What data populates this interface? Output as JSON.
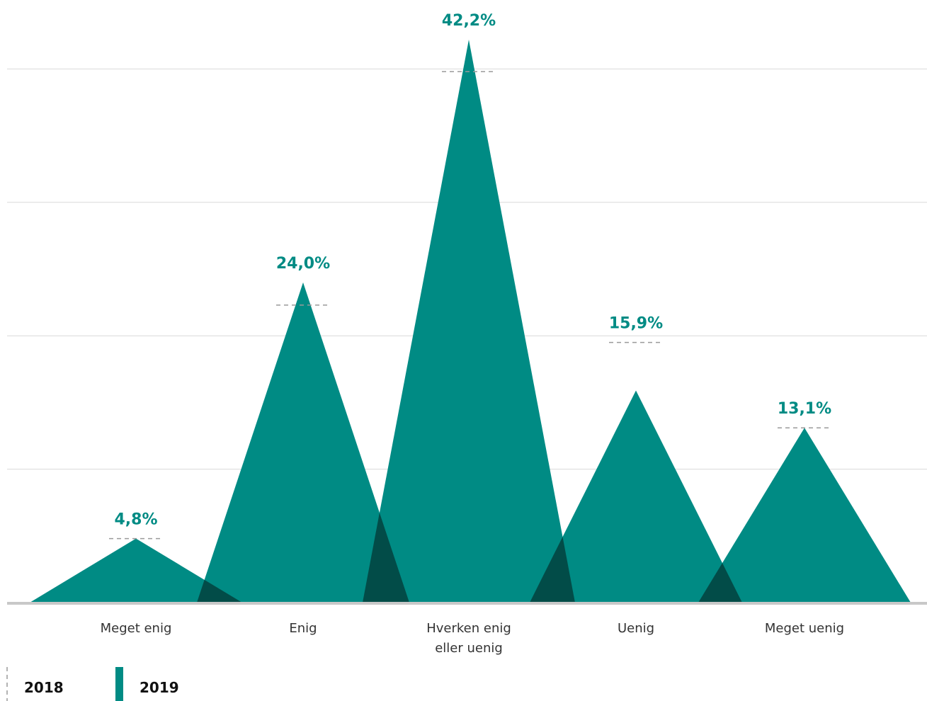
{
  "chart_data": {
    "type": "area",
    "categories": [
      "Meget enig",
      "Enig",
      "Hverken enig eller uenig",
      "Uenig",
      "Meget uenig"
    ],
    "category_lines": [
      [
        "Meget enig"
      ],
      [
        "Enig"
      ],
      [
        "Hverken enig",
        "eller uenig"
      ],
      [
        "Uenig"
      ],
      [
        "Meget uenig"
      ]
    ],
    "series": [
      {
        "name": "2018",
        "values": [
          4.8,
          22.3,
          39.8,
          19.5,
          13.1
        ]
      },
      {
        "name": "2019",
        "values": [
          4.8,
          24.0,
          42.2,
          15.9,
          13.1
        ]
      }
    ],
    "value_labels": [
      "4,8%",
      "24,0%",
      "42,2%",
      "15,9%",
      "13,1%"
    ],
    "ylim": [
      0,
      44.5
    ],
    "gridlines": [
      10,
      20,
      30,
      40
    ],
    "grid": true,
    "legend_position": "bottom-left"
  },
  "legend": [
    {
      "label": "2018",
      "style": "dashed"
    },
    {
      "label": "2019",
      "style": "solid"
    }
  ],
  "colors": {
    "accent": "#008b84",
    "overlap": "#024c48",
    "grid": "#d9d9d9",
    "baseline": "#c8c8c8",
    "dash": "#9a9a9a"
  }
}
